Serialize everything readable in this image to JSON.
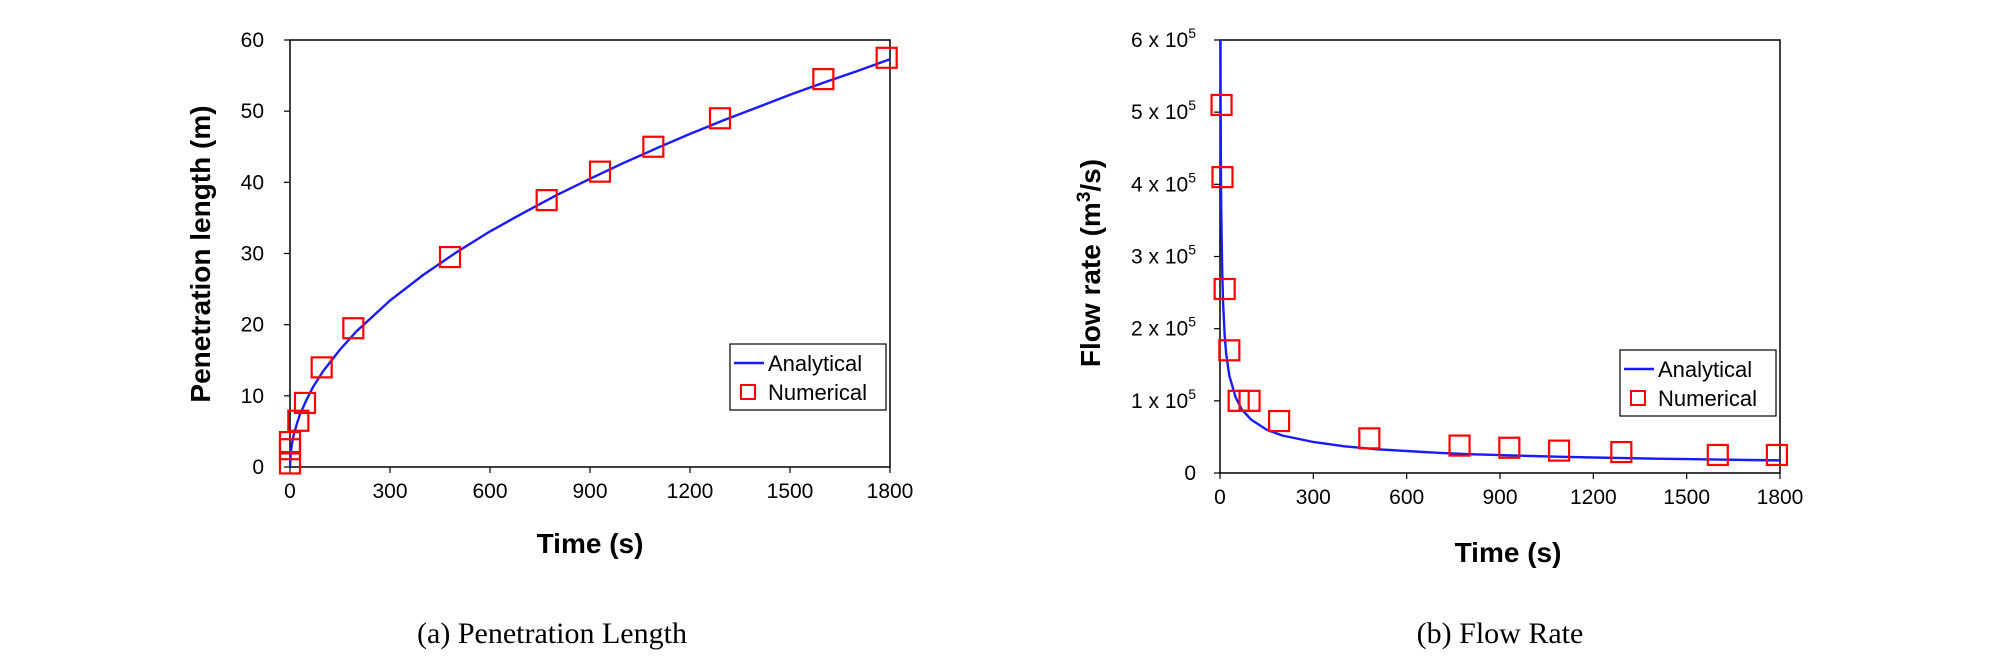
{
  "chart_data": [
    {
      "type": "line",
      "caption": "(a)  Penetration  Length",
      "xlabel": "Time (s)",
      "ylabel": "Penetration length (m)",
      "xlim": [
        0,
        1800
      ],
      "ylim": [
        0,
        60
      ],
      "xticks": [
        "0",
        "300",
        "600",
        "900",
        "1200",
        "1500",
        "1800"
      ],
      "yticks": [
        "0",
        "10",
        "20",
        "30",
        "40",
        "50",
        "60"
      ],
      "legend": {
        "placement": "bottom-right",
        "entries": [
          "Analytical",
          "Numerical"
        ]
      },
      "colors": {
        "analytical": "#1a1aff",
        "numerical": "#ff0000"
      },
      "series": [
        {
          "name": "Analytical",
          "style": "line",
          "x": [
            0,
            2,
            5,
            10,
            20,
            30,
            50,
            70,
            100,
            150,
            200,
            300,
            400,
            500,
            600,
            700,
            800,
            900,
            1000,
            1100,
            1200,
            1300,
            1400,
            1500,
            1600,
            1700,
            1800
          ],
          "y": [
            0,
            1.9,
            3.0,
            4.3,
            6.0,
            7.4,
            9.5,
            11.3,
            13.5,
            16.5,
            19.1,
            23.4,
            27.0,
            30.2,
            33.1,
            35.7,
            38.2,
            40.5,
            42.7,
            44.8,
            46.8,
            48.7,
            50.5,
            52.3,
            54.0,
            55.6,
            57.3
          ]
        },
        {
          "name": "Numerical",
          "style": "square-marker",
          "x": [
            0,
            0,
            0,
            25,
            45,
            95,
            190,
            480,
            770,
            930,
            1090,
            1290,
            1600,
            1790
          ],
          "y": [
            0.5,
            2.5,
            3.5,
            6.5,
            9,
            14,
            19.5,
            29.5,
            37.5,
            41.5,
            45,
            49,
            54.5,
            57.5
          ]
        }
      ]
    },
    {
      "type": "line",
      "caption": "(b)  Flow  Rate",
      "xlabel": "Time (s)",
      "ylabel": "Flow rate (m3/s)",
      "xlim": [
        0,
        1800
      ],
      "ylim": [
        0,
        600000
      ],
      "xticks": [
        "0",
        "300",
        "600",
        "900",
        "1200",
        "1500",
        "1800"
      ],
      "yticks": [
        {
          "mant": "0",
          "exp": ""
        },
        {
          "mant": "1 x 10",
          "exp": "5"
        },
        {
          "mant": "2 x 10",
          "exp": "5"
        },
        {
          "mant": "3 x 10",
          "exp": "5"
        },
        {
          "mant": "4 x 10",
          "exp": "5"
        },
        {
          "mant": "5 x 10",
          "exp": "5"
        },
        {
          "mant": "6 x 10",
          "exp": "5"
        }
      ],
      "legend": {
        "placement": "bottom-right",
        "entries": [
          "Analytical",
          "Numerical"
        ]
      },
      "colors": {
        "analytical": "#1a1aff",
        "numerical": "#ff0000"
      },
      "series": [
        {
          "name": "Analytical",
          "style": "line",
          "x": [
            1.5,
            2,
            3,
            4,
            5,
            7,
            10,
            15,
            20,
            30,
            50,
            70,
            100,
            150,
            200,
            300,
            400,
            500,
            600,
            700,
            800,
            900,
            1000,
            1100,
            1200,
            1300,
            1400,
            1500,
            1600,
            1700,
            1800
          ],
          "y": [
            600000,
            520000,
            425000,
            370000,
            330000,
            280000,
            235000,
            190000,
            165000,
            135000,
            105000,
            88000,
            74000,
            60000,
            52000,
            43000,
            37000,
            33000,
            30500,
            28000,
            26000,
            24800,
            23500,
            22400,
            21500,
            20600,
            19800,
            19200,
            18600,
            18000,
            17500
          ]
        },
        {
          "name": "Numerical",
          "style": "square-marker",
          "x": [
            5,
            8,
            15,
            30,
            60,
            95,
            190,
            480,
            770,
            930,
            1090,
            1290,
            1600,
            1790
          ],
          "y": [
            510000,
            410000,
            255000,
            170000,
            100000,
            100000,
            72000,
            48000,
            38000,
            35000,
            31000,
            29000,
            25000,
            25000
          ]
        }
      ]
    }
  ]
}
